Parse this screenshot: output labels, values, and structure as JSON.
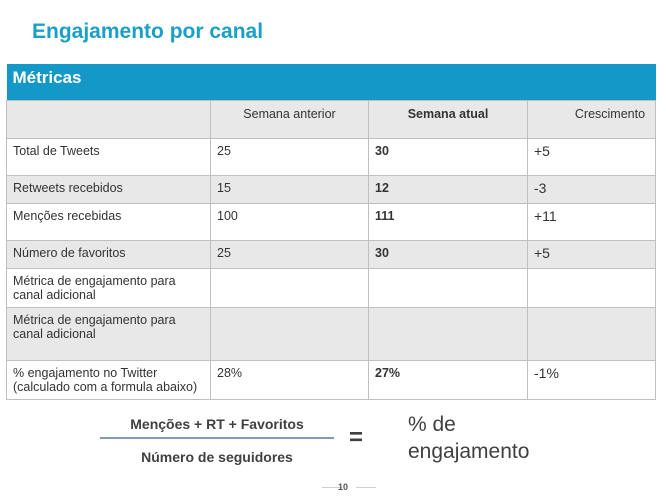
{
  "slide": {
    "title": "Engajamento por canal",
    "page_number": "10"
  },
  "table": {
    "banner": "Métricas",
    "headers": [
      "",
      "Semana anterior",
      "Semana atual",
      "Crescimento"
    ],
    "rows": [
      {
        "metric": "Total de Tweets",
        "previous": "25",
        "current": "30",
        "growth": "+5"
      },
      {
        "metric": "Retweets recebidos",
        "previous": "15",
        "current": "12",
        "growth": "-3"
      },
      {
        "metric": "Menções recebidas",
        "previous": "100",
        "current": "111",
        "growth": "+11"
      },
      {
        "metric": "Número de favoritos",
        "previous": "25",
        "current": "30",
        "growth": "+5"
      },
      {
        "metric": "Métrica de engajamento para canal adicional",
        "previous": "",
        "current": "",
        "growth": ""
      },
      {
        "metric": "Métrica de engajamento para canal adicional",
        "previous": "",
        "current": "",
        "growth": ""
      },
      {
        "metric": "% engajamento no Twitter (calculado com a formula abaixo)",
        "previous": "28%",
        "current": "27%",
        "growth": "-1%"
      }
    ]
  },
  "formula": {
    "numerator": "Menções + RT + Favoritos",
    "denominator": "Número de seguidores",
    "equals": "=",
    "result": "% de engajamento"
  },
  "colors": {
    "title": "#1aa0c6",
    "banner": "#1398c8",
    "shade": "#e8e8e8"
  }
}
